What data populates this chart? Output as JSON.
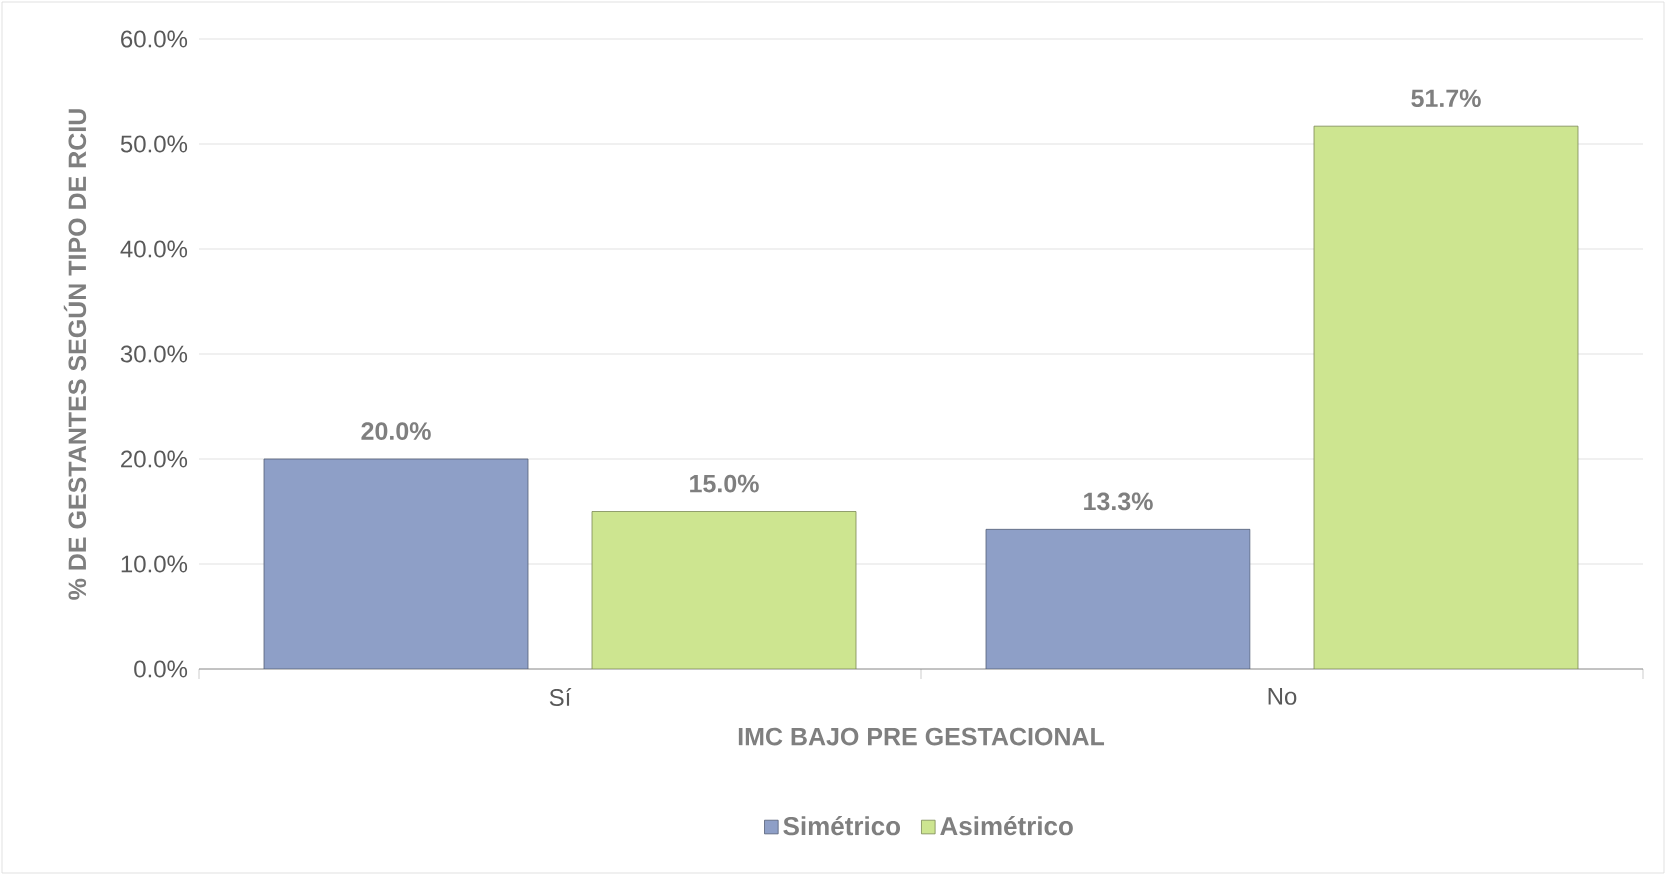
{
  "chart_data": {
    "type": "bar",
    "xlabel": "IMC BAJO PRE GESTACIONAL",
    "ylabel": "% DE GESTANTES SEGÚN TIPO DE RCIU",
    "categories": [
      "Sí",
      "No"
    ],
    "series": [
      {
        "name": "Simétrico",
        "color": "#8e9fc7",
        "values": [
          20.0,
          13.3
        ],
        "value_labels": [
          "20.0%",
          "13.3%"
        ]
      },
      {
        "name": "Asimétrico",
        "color": "#cde590",
        "values": [
          15.0,
          51.7
        ],
        "value_labels": [
          "15.0%",
          "51.7%"
        ]
      }
    ],
    "ylim": [
      0,
      60
    ],
    "yticks": [
      {
        "value": 0,
        "label": "0.0%"
      },
      {
        "value": 10,
        "label": "10.0%"
      },
      {
        "value": 20,
        "label": "20.0%"
      },
      {
        "value": 30,
        "label": "30.0%"
      },
      {
        "value": 40,
        "label": "40.0%"
      },
      {
        "value": 50,
        "label": "50.0%"
      },
      {
        "value": 60,
        "label": "60.0%"
      }
    ],
    "grid": "y",
    "legend": "bottom"
  }
}
